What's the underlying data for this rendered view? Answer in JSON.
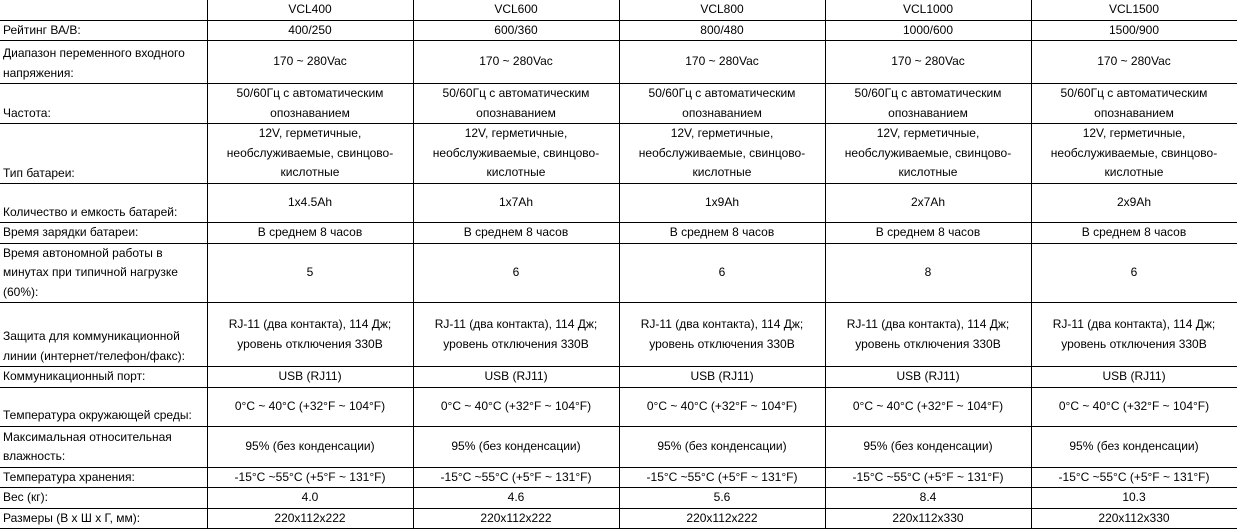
{
  "columns": [
    "",
    "VCL400",
    "VCL600",
    "VCL800",
    "VCL1000",
    "VCL1500"
  ],
  "rows": [
    {
      "label": "Рейтинг ВА/В:",
      "values": [
        "400/250",
        "600/360",
        "800/480",
        "1000/600",
        "1500/900"
      ]
    },
    {
      "label": "Диапазон переменного входного напряжения:",
      "values": [
        "170 ~ 280Vac",
        "170 ~ 280Vac",
        "170 ~ 280Vac",
        "170 ~ 280Vac",
        "170 ~ 280Vac"
      ]
    },
    {
      "label": "Частота:",
      "values": [
        "50/60Гц с автоматическим опознаванием",
        "50/60Гц с автоматическим опознаванием",
        "50/60Гц с автоматическим опознаванием",
        "50/60Гц с автоматическим опознаванием",
        "50/60Гц с автоматическим опознаванием"
      ]
    },
    {
      "label": "Тип батареи:",
      "values": [
        "12V, герметичные, необслуживаемые, свинцово-кислотные",
        "12V, герметичные, необслуживаемые, свинцово-кислотные",
        "12V, герметичные, необслуживаемые, свинцово-кислотные",
        "12V, герметичные, необслуживаемые, свинцово-кислотные",
        "12V, герметичные, необслуживаемые, свинцово-кислотные"
      ]
    },
    {
      "label": "Количество и емкость батарей:",
      "values": [
        "1x4.5Ah",
        "1x7Ah",
        "1x9Ah",
        "2x7Ah",
        "2x9Ah"
      ]
    },
    {
      "label": "Время зарядки батареи:",
      "values": [
        "В среднем 8 часов",
        "В среднем 8 часов",
        "В среднем 8 часов",
        "В среднем 8 часов",
        "В среднем 8 часов"
      ]
    },
    {
      "label": "Время автономной работы в минутах при типичной нагрузке (60%):",
      "values": [
        "5",
        "6",
        "6",
        "8",
        "6"
      ]
    },
    {
      "label": "Защита для коммуникационной линии (интернет/телефон/факс):",
      "values": [
        "RJ-11 (два контакта), 114 Дж; уровень отключения 330В",
        "RJ-11 (два контакта), 114 Дж; уровень отключения 330В",
        "RJ-11 (два контакта), 114 Дж; уровень отключения 330В",
        "RJ-11 (два контакта), 114 Дж; уровень отключения 330В",
        "RJ-11 (два контакта), 114 Дж; уровень отключения 330В"
      ]
    },
    {
      "label": "Коммуникационный порт:",
      "values": [
        "USB (RJ11)",
        "USB (RJ11)",
        "USB (RJ11)",
        "USB (RJ11)",
        "USB (RJ11)"
      ]
    },
    {
      "label": "Температура окружающей среды:",
      "values": [
        "0°C ~ 40°C (+32°F ~ 104°F)",
        "0°C ~ 40°C (+32°F ~ 104°F)",
        "0°C ~ 40°C (+32°F ~ 104°F)",
        "0°C ~ 40°C (+32°F ~ 104°F)",
        "0°C ~ 40°C (+32°F ~ 104°F)"
      ]
    },
    {
      "label": "Максимальная относительная влажность:",
      "values": [
        "95% (без конденсации)",
        "95% (без конденсации)",
        "95% (без конденсации)",
        "95% (без конденсации)",
        "95% (без конденсации)"
      ]
    },
    {
      "label": "Температура хранения:",
      "values": [
        "-15°C ~55°C (+5°F ~ 131°F)",
        "-15°C ~55°C (+5°F ~ 131°F)",
        "-15°C ~55°C (+5°F ~ 131°F)",
        "-15°C ~55°C (+5°F ~ 131°F)",
        "-15°C ~55°C (+5°F ~ 131°F)"
      ]
    },
    {
      "label": "Вес (кг):",
      "values": [
        "4.0",
        "4.6",
        "5.6",
        "8.4",
        "10.3"
      ]
    },
    {
      "label": "Размеры (В x Ш x Г, мм):",
      "values": [
        "220x112x222",
        "220x112x222",
        "220x112x222",
        "220x112x330",
        "220x112x330"
      ]
    }
  ]
}
